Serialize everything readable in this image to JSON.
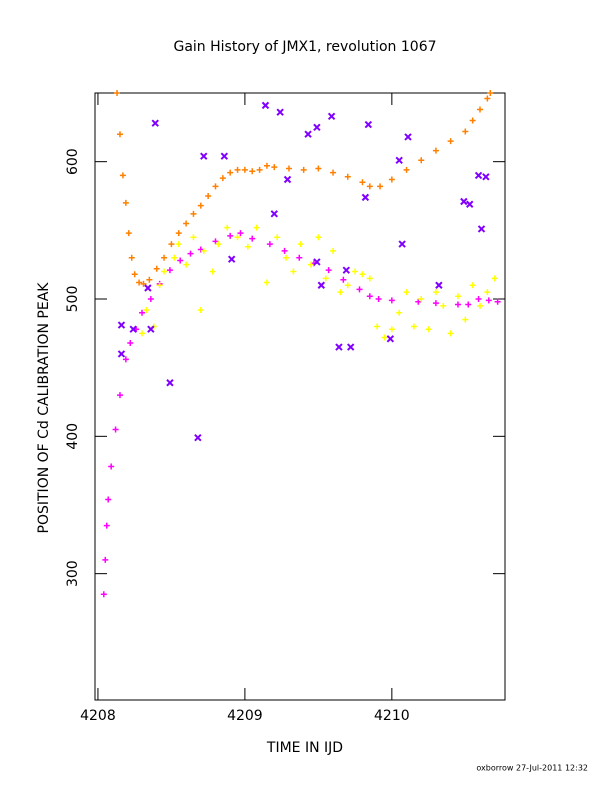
{
  "chart_data": {
    "type": "scatter",
    "title": "Gain History of JMX1, revolution 1067",
    "x_label": "TIME IN IJD",
    "y_label": "POSITION OF Cd CALIBRATION PEAK",
    "footer": "oxborrow 27-Jul-2011 12:32",
    "xlim": [
      4207.98,
      4210.77
    ],
    "ylim": [
      208,
      650
    ],
    "xticks": [
      4208,
      4209,
      4210
    ],
    "yticks": [
      300,
      400,
      500,
      600
    ],
    "grid": false,
    "series": [
      {
        "color": "#ff8000",
        "marker": "plus",
        "x": [
          4208.13,
          4208.15,
          4208.17,
          4208.19,
          4208.21,
          4208.23,
          4208.25,
          4208.28,
          4208.31,
          4208.35,
          4208.4,
          4208.45,
          4208.5,
          4208.55,
          4208.6,
          4208.65,
          4208.7,
          4208.75,
          4208.8,
          4208.85,
          4208.9,
          4208.95,
          4209.0,
          4209.05,
          4209.1,
          4209.15,
          4209.2,
          4209.3,
          4209.4,
          4209.5,
          4209.6,
          4209.7,
          4209.8,
          4209.85,
          4209.92,
          4210.0,
          4210.1,
          4210.2,
          4210.3,
          4210.4,
          4210.5,
          4210.55,
          4210.6,
          4210.65,
          4210.67
        ],
        "values": [
          650,
          620,
          590,
          570,
          548,
          530,
          518,
          512,
          511,
          514,
          522,
          530,
          540,
          548,
          555,
          562,
          568,
          575,
          582,
          588,
          592,
          594,
          594,
          593,
          594,
          597,
          596,
          595,
          594,
          595,
          592,
          589,
          585,
          582,
          582,
          587,
          594,
          601,
          608,
          615,
          622,
          630,
          638,
          646,
          650
        ]
      },
      {
        "color": "#ff00ff",
        "marker": "plus",
        "x": [
          4208.04,
          4208.05,
          4208.06,
          4208.07,
          4208.09,
          4208.12,
          4208.15,
          4208.19,
          4208.22,
          4208.26,
          4208.3,
          4208.36,
          4208.42,
          4208.49,
          4208.56,
          4208.63,
          4208.7,
          4208.8,
          4208.9,
          4208.97,
          4209.05,
          4209.17,
          4209.27,
          4209.37,
          4209.47,
          4209.57,
          4209.67,
          4209.78,
          4209.85,
          4209.91,
          4210.0,
          4210.18,
          4210.3,
          4210.45,
          4210.52,
          4210.59,
          4210.66,
          4210.72
        ],
        "values": [
          285,
          310,
          335,
          354,
          378,
          405,
          430,
          456,
          468,
          478,
          490,
          500,
          511,
          521,
          528,
          533,
          536,
          542,
          546,
          548,
          544,
          540,
          535,
          530,
          526,
          521,
          514,
          507,
          502,
          500,
          499,
          498,
          497,
          496,
          496,
          500,
          499,
          498
        ]
      },
      {
        "color": "#ffff00",
        "marker": "plus",
        "x": [
          4208.3,
          4208.33,
          4208.38,
          4208.42,
          4208.45,
          4208.52,
          4208.55,
          4208.6,
          4208.65,
          4208.7,
          4208.72,
          4208.78,
          4208.82,
          4208.88,
          4208.95,
          4209.02,
          4209.08,
          4209.15,
          4209.22,
          4209.28,
          4209.33,
          4209.38,
          4209.45,
          4209.5,
          4209.55,
          4209.6,
          4209.65,
          4209.7,
          4209.75,
          4209.8,
          4209.85,
          4209.9,
          4209.95,
          4210.0,
          4210.05,
          4210.1,
          4210.15,
          4210.2,
          4210.25,
          4210.3,
          4210.35,
          4210.4,
          4210.45,
          4210.5,
          4210.55,
          4210.6,
          4210.65,
          4210.7
        ],
        "values": [
          475,
          492,
          480,
          510,
          520,
          530,
          540,
          525,
          545,
          492,
          535,
          520,
          540,
          552,
          545,
          538,
          552,
          512,
          545,
          530,
          520,
          540,
          525,
          545,
          515,
          535,
          505,
          510,
          520,
          518,
          515,
          480,
          472,
          478,
          490,
          505,
          480,
          500,
          478,
          505,
          495,
          475,
          502,
          485,
          510,
          495,
          505,
          515
        ]
      },
      {
        "color": "#8000ff",
        "marker": "x",
        "x": [
          4208.16,
          4208.39,
          4208.49,
          4208.68,
          4208.72,
          4208.86,
          4208.91,
          4209.14,
          4209.2,
          4209.24,
          4209.29,
          4209.43,
          4209.49,
          4209.59,
          4209.49,
          4209.52,
          4209.64,
          4209.72,
          4209.69,
          4209.84,
          4209.82,
          4210.05,
          4210.07,
          4210.11,
          4209.99,
          4210.32,
          4210.49,
          4210.53,
          4210.59,
          4210.64,
          4210.61,
          4208.16,
          4208.24,
          4208.36,
          4208.34
        ],
        "values": [
          481,
          628,
          439,
          399,
          604,
          604,
          529,
          641,
          562,
          636,
          587,
          620,
          625,
          633,
          527,
          510,
          465,
          465,
          521,
          627,
          574,
          601,
          540,
          618,
          471,
          510,
          571,
          569,
          590,
          589,
          551,
          460,
          478,
          478,
          508
        ]
      }
    ]
  }
}
